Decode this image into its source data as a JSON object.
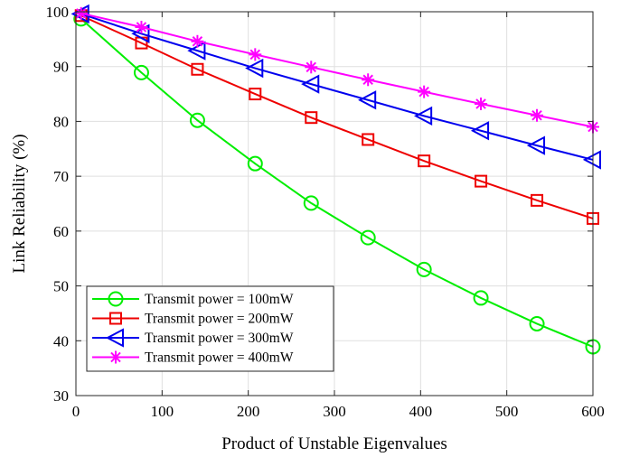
{
  "chart_data": {
    "type": "line",
    "title": "",
    "xlabel": "Product of Unstable Eigenvalues",
    "ylabel": "Link Reliability (%)",
    "xlim": [
      0,
      600
    ],
    "ylim": [
      30,
      100
    ],
    "xticks": [
      0,
      100,
      200,
      300,
      400,
      500,
      600
    ],
    "yticks": [
      30,
      40,
      50,
      60,
      70,
      80,
      90,
      100
    ],
    "grid": true,
    "legend_position": "bottom-left",
    "x": [
      6,
      76,
      141,
      208,
      273,
      339,
      404,
      470,
      535,
      600
    ],
    "series": [
      {
        "name": "Transmit power = 100mW",
        "color": "#00ee00",
        "marker": "circle",
        "values": [
          98.7,
          88.9,
          80.2,
          72.3,
          65.1,
          58.8,
          53.0,
          47.8,
          43.1,
          38.9
        ]
      },
      {
        "name": "Transmit power = 200mW",
        "color": "#ee0000",
        "marker": "square",
        "values": [
          99.3,
          94.3,
          89.5,
          85.0,
          80.7,
          76.7,
          72.8,
          69.1,
          65.6,
          62.3
        ]
      },
      {
        "name": "Transmit power = 300mW",
        "color": "#0000ee",
        "marker": "triangle-left",
        "values": [
          99.6,
          96.0,
          92.9,
          89.7,
          86.8,
          83.9,
          81.0,
          78.3,
          75.6,
          73.0
        ]
      },
      {
        "name": "Transmit power = 400mW",
        "color": "#ff00ff",
        "marker": "asterisk",
        "values": [
          99.7,
          97.2,
          94.6,
          92.2,
          89.9,
          87.6,
          85.4,
          83.2,
          81.1,
          79.0
        ]
      }
    ]
  }
}
